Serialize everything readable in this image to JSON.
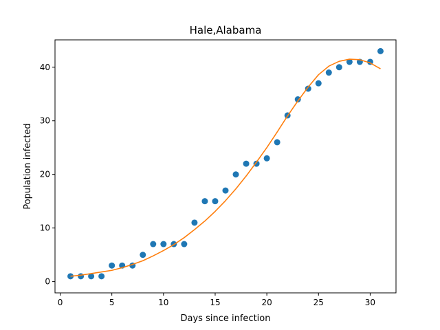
{
  "chart_data": {
    "type": "scatter",
    "title": "Hale,Alabama",
    "xlabel": "Days since infection",
    "ylabel": "Population infected",
    "xlim": [
      -0.5,
      32.5
    ],
    "ylim": [
      -2.1,
      45.1
    ],
    "xticks": [
      0,
      5,
      10,
      15,
      20,
      25,
      30
    ],
    "yticks": [
      0,
      10,
      20,
      30,
      40
    ],
    "grid": false,
    "colors": {
      "points": "#1f77b4",
      "fit": "#ff7f0e"
    },
    "series": [
      {
        "type": "scatter",
        "x": [
          1,
          2,
          3,
          4,
          5,
          6,
          7,
          8,
          9,
          10,
          11,
          12,
          13,
          14,
          15,
          16,
          17,
          18,
          19,
          20,
          21,
          22,
          23,
          24,
          25,
          26,
          27,
          28,
          29,
          30,
          31
        ],
        "values": [
          1,
          1,
          1,
          1,
          3,
          3,
          3,
          5,
          7,
          7,
          7,
          7,
          11,
          15,
          15,
          17,
          20,
          22,
          22,
          23,
          26,
          31,
          34,
          36,
          37,
          39,
          40,
          41,
          41,
          41,
          43
        ]
      },
      {
        "type": "line",
        "x": [
          1,
          2,
          3,
          4,
          5,
          6,
          7,
          8,
          9,
          10,
          11,
          12,
          13,
          14,
          15,
          16,
          17,
          18,
          19,
          20,
          21,
          22,
          23,
          24,
          25,
          26,
          27,
          28,
          29,
          30,
          31
        ],
        "values": [
          1.0,
          1.2,
          1.5,
          1.8,
          2.1,
          2.6,
          3.2,
          3.9,
          4.8,
          5.8,
          6.9,
          8.2,
          9.7,
          11.3,
          13.1,
          15.1,
          17.3,
          19.7,
          22.3,
          25.0,
          27.9,
          30.9,
          33.7,
          36.3,
          38.6,
          40.2,
          41.1,
          41.5,
          41.4,
          40.8,
          39.7
        ]
      }
    ]
  }
}
